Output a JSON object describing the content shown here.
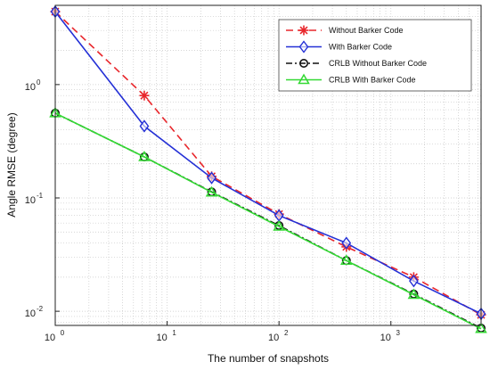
{
  "chart_data": {
    "type": "line",
    "title": "",
    "xlabel": "The number of snapshots",
    "ylabel": "Angle RMSE (degree)",
    "x_scale": "log",
    "y_scale": "log",
    "xlim": [
      1,
      6400
    ],
    "ylim": [
      0.0075,
      5.0
    ],
    "grid": true,
    "legend_position": "top-right",
    "x": [
      1,
      6.25,
      25,
      100,
      400,
      1600,
      6400
    ],
    "x_ticks": [
      {
        "value": 1,
        "base": "10",
        "exp": "0"
      },
      {
        "value": 10,
        "base": "10",
        "exp": "1"
      },
      {
        "value": 100,
        "base": "10",
        "exp": "2"
      },
      {
        "value": 1000,
        "base": "10",
        "exp": "3"
      }
    ],
    "y_ticks": [
      {
        "value": 0.01,
        "base": "10",
        "exp": "-2"
      },
      {
        "value": 0.1,
        "base": "10",
        "exp": "-1"
      },
      {
        "value": 1,
        "base": "10",
        "exp": "0"
      }
    ],
    "series": [
      {
        "name": "Without Barker Code",
        "color": "#e8262b",
        "dash": "8,5",
        "marker": "star",
        "values": [
          4.4,
          0.8,
          0.155,
          0.072,
          0.037,
          0.02,
          0.0093
        ]
      },
      {
        "name": "With Barker Code",
        "color": "#2430d6",
        "dash": "",
        "marker": "diamond",
        "values": [
          4.4,
          0.43,
          0.15,
          0.07,
          0.04,
          0.0185,
          0.0095
        ]
      },
      {
        "name": "CRLB Without Barker Code",
        "color": "#111111",
        "dash": "7,3,2,3",
        "marker": "circle",
        "values": [
          0.56,
          0.23,
          0.113,
          0.057,
          0.028,
          0.0142,
          0.0071
        ]
      },
      {
        "name": "CRLB With Barker Code",
        "color": "#33d933",
        "dash": "",
        "marker": "triangle",
        "values": [
          0.56,
          0.23,
          0.112,
          0.056,
          0.028,
          0.014,
          0.007
        ]
      }
    ]
  }
}
